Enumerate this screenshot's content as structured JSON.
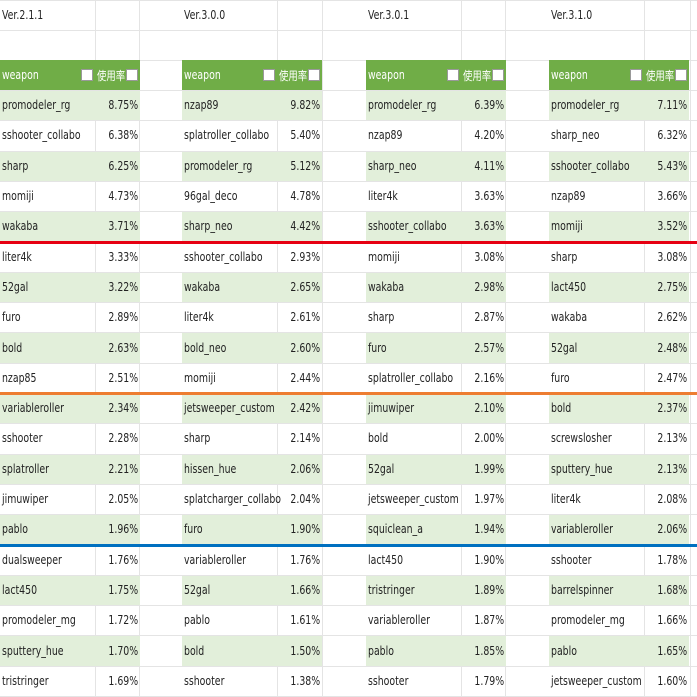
{
  "tables": [
    {
      "version": "Ver.2.1.1",
      "header": [
        "weapon",
        "使用率"
      ],
      "rows": [
        [
          "promodeler_rg",
          "8.75%"
        ],
        [
          "sshooter_collabo",
          "6.38%"
        ],
        [
          "sharp",
          "6.25%"
        ],
        [
          "momiji",
          "4.73%"
        ],
        [
          "wakaba",
          "3.71%"
        ],
        [
          "liter4k",
          "3.33%"
        ],
        [
          "52gal",
          "3.22%"
        ],
        [
          "furo",
          "2.89%"
        ],
        [
          "bold",
          "2.63%"
        ],
        [
          "nzap85",
          "2.51%"
        ],
        [
          "variableroller",
          "2.34%"
        ],
        [
          "sshooter",
          "2.28%"
        ],
        [
          "splatroller",
          "2.21%"
        ],
        [
          "jimuwiper",
          "2.05%"
        ],
        [
          "pablo",
          "1.96%"
        ],
        [
          "dualsweeper",
          "1.76%"
        ],
        [
          "lact450",
          "1.75%"
        ],
        [
          "promodeler_mg",
          "1.72%"
        ],
        [
          "sputtery_hue",
          "1.70%"
        ],
        [
          "tristringer",
          "1.69%"
        ]
      ]
    },
    {
      "version": "Ver.3.0.0",
      "header": [
        "weapon",
        "使用率"
      ],
      "rows": [
        [
          "nzap89",
          "9.82%"
        ],
        [
          "splatroller_collabo",
          "5.40%"
        ],
        [
          "promodeler_rg",
          "5.12%"
        ],
        [
          "96gal_deco",
          "4.78%"
        ],
        [
          "sharp_neo",
          "4.42%"
        ],
        [
          "sshooter_collabo",
          "2.93%"
        ],
        [
          "wakaba",
          "2.65%"
        ],
        [
          "liter4k",
          "2.61%"
        ],
        [
          "bold_neo",
          "2.60%"
        ],
        [
          "momiji",
          "2.44%"
        ],
        [
          "jetsweeper_custom",
          "2.42%"
        ],
        [
          "sharp",
          "2.14%"
        ],
        [
          "hissen_hue",
          "2.06%"
        ],
        [
          "splatcharger_collabo",
          "2.04%"
        ],
        [
          "furo",
          "1.90%"
        ],
        [
          "variableroller",
          "1.76%"
        ],
        [
          "52gal",
          "1.66%"
        ],
        [
          "pablo",
          "1.61%"
        ],
        [
          "bold",
          "1.50%"
        ],
        [
          "sshooter",
          "1.38%"
        ]
      ]
    },
    {
      "version": "Ver.3.0.1",
      "header": [
        "weapon",
        "使用率"
      ],
      "rows": [
        [
          "promodeler_rg",
          "6.39%"
        ],
        [
          "nzap89",
          "4.20%"
        ],
        [
          "sharp_neo",
          "4.11%"
        ],
        [
          "liter4k",
          "3.63%"
        ],
        [
          "sshooter_collabo",
          "3.63%"
        ],
        [
          "momiji",
          "3.08%"
        ],
        [
          "wakaba",
          "2.98%"
        ],
        [
          "sharp",
          "2.87%"
        ],
        [
          "furo",
          "2.57%"
        ],
        [
          "splatroller_collabo",
          "2.16%"
        ],
        [
          "jimuwiper",
          "2.10%"
        ],
        [
          "bold",
          "2.00%"
        ],
        [
          "52gal",
          "1.99%"
        ],
        [
          "jetsweeper_custom",
          "1.97%"
        ],
        [
          "squiclean_a",
          "1.94%"
        ],
        [
          "lact450",
          "1.90%"
        ],
        [
          "tristringer",
          "1.89%"
        ],
        [
          "variableroller",
          "1.87%"
        ],
        [
          "pablo",
          "1.85%"
        ],
        [
          "sshooter",
          "1.79%"
        ]
      ]
    },
    {
      "version": "Ver.3.1.0",
      "header": [
        "weapon",
        "使用率"
      ],
      "rows": [
        [
          "promodeler_rg",
          "7.11%"
        ],
        [
          "sharp_neo",
          "6.32%"
        ],
        [
          "sshooter_collabo",
          "5.43%"
        ],
        [
          "nzap89",
          "3.66%"
        ],
        [
          "momiji",
          "3.52%"
        ],
        [
          "sharp",
          "3.08%"
        ],
        [
          "lact450",
          "2.75%"
        ],
        [
          "wakaba",
          "2.62%"
        ],
        [
          "52gal",
          "2.48%"
        ],
        [
          "furo",
          "2.47%"
        ],
        [
          "bold",
          "2.37%"
        ],
        [
          "screwslosher",
          "2.13%"
        ],
        [
          "sputtery_hue",
          "2.13%"
        ],
        [
          "liter4k",
          "2.08%"
        ],
        [
          "variableroller",
          "2.06%"
        ],
        [
          "sshooter",
          "1.78%"
        ],
        [
          "barrelspinner",
          "1.68%"
        ],
        [
          "promodeler_mg",
          "1.66%"
        ],
        [
          "pablo",
          "1.65%"
        ],
        [
          "jetsweeper_custom",
          "1.60%"
        ]
      ]
    }
  ]
}
